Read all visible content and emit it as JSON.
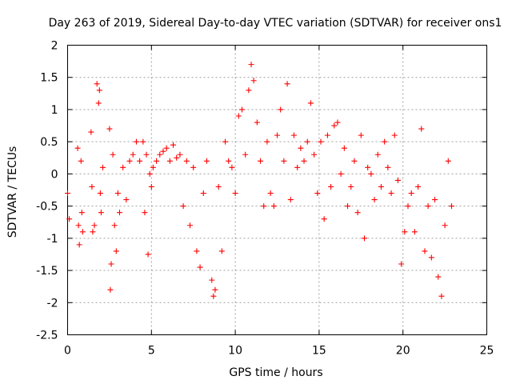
{
  "chart_data": {
    "type": "scatter",
    "title": "Day 263 of 2019, Sidereal Day-to-day VTEC variation (SDTVAR) for receiver ons1",
    "xlabel": "GPS time / hours",
    "ylabel": "SDTVAR / TECUs",
    "xlim": [
      0,
      25
    ],
    "ylim": [
      -2.5,
      2
    ],
    "x_ticks": [
      0,
      5,
      10,
      15,
      20,
      25
    ],
    "x_tick_labels": [
      "0",
      "5",
      "10",
      "15",
      "20",
      "25"
    ],
    "y_ticks": [
      -2.5,
      -2,
      -1.5,
      -1,
      -0.5,
      0,
      0.5,
      1,
      1.5,
      2
    ],
    "y_tick_labels": [
      "-2.5",
      "-2",
      "-1.5",
      "-1",
      "-0.5",
      "0",
      "0.5",
      "1",
      "1.5",
      "2"
    ],
    "grid": true,
    "marker": "+",
    "color": "#ff0000",
    "series": [
      {
        "name": "SDTVAR",
        "x": [
          0.0,
          0.1,
          0.6,
          0.65,
          0.7,
          0.8,
          0.85,
          0.9,
          1.4,
          1.45,
          1.5,
          1.6,
          1.75,
          1.85,
          1.9,
          1.95,
          2.0,
          2.1,
          2.5,
          2.55,
          2.6,
          2.7,
          2.8,
          2.9,
          3.0,
          3.1,
          3.3,
          3.5,
          3.7,
          3.9,
          4.1,
          4.3,
          4.5,
          4.6,
          4.7,
          4.8,
          4.9,
          5.0,
          5.1,
          5.3,
          5.5,
          5.7,
          5.9,
          6.1,
          6.3,
          6.5,
          6.7,
          6.9,
          7.1,
          7.3,
          7.5,
          7.7,
          7.9,
          8.1,
          8.3,
          8.6,
          8.7,
          8.8,
          9.0,
          9.2,
          9.4,
          9.6,
          9.8,
          10.0,
          10.2,
          10.4,
          10.6,
          10.8,
          10.95,
          11.1,
          11.3,
          11.5,
          11.7,
          11.9,
          12.1,
          12.3,
          12.5,
          12.7,
          12.9,
          13.1,
          13.3,
          13.5,
          13.7,
          13.9,
          14.1,
          14.3,
          14.5,
          14.7,
          14.9,
          15.1,
          15.3,
          15.5,
          15.7,
          15.9,
          16.1,
          16.3,
          16.5,
          16.7,
          16.9,
          17.1,
          17.3,
          17.5,
          17.7,
          17.9,
          18.1,
          18.3,
          18.5,
          18.7,
          18.9,
          19.1,
          19.3,
          19.5,
          19.7,
          19.9,
          20.1,
          20.3,
          20.5,
          20.7,
          20.9,
          21.1,
          21.3,
          21.5,
          21.7,
          21.9,
          22.1,
          22.3,
          22.5,
          22.7,
          22.9
        ],
        "y": [
          -0.3,
          -0.7,
          0.4,
          -0.8,
          -1.1,
          0.2,
          -0.6,
          -0.9,
          0.65,
          -0.2,
          -0.9,
          -0.8,
          1.4,
          1.1,
          1.3,
          -0.3,
          -0.6,
          0.1,
          0.7,
          -1.8,
          -1.4,
          0.3,
          -0.8,
          -1.2,
          -0.3,
          -0.6,
          0.1,
          -0.4,
          0.2,
          0.3,
          0.5,
          0.2,
          0.5,
          -0.6,
          0.3,
          -1.25,
          0.0,
          -0.2,
          0.1,
          0.2,
          0.3,
          0.35,
          0.4,
          0.2,
          0.45,
          0.25,
          0.3,
          -0.5,
          0.2,
          -0.8,
          0.1,
          -1.2,
          -1.45,
          -0.3,
          0.2,
          -1.65,
          -1.9,
          -1.8,
          -0.2,
          -1.2,
          0.5,
          0.2,
          0.1,
          -0.3,
          0.9,
          1.0,
          0.3,
          1.3,
          1.7,
          1.45,
          0.8,
          0.2,
          -0.5,
          0.5,
          -0.3,
          -0.5,
          0.6,
          1.0,
          0.2,
          1.4,
          -0.4,
          0.6,
          0.1,
          0.4,
          0.2,
          0.5,
          1.1,
          0.3,
          -0.3,
          0.5,
          -0.7,
          0.6,
          -0.2,
          0.75,
          0.8,
          0.0,
          0.4,
          -0.5,
          -0.2,
          0.2,
          -0.6,
          0.6,
          -1.0,
          0.1,
          0.0,
          -0.4,
          0.3,
          -0.2,
          0.5,
          0.1,
          -0.3,
          0.6,
          -0.1,
          -1.4,
          -0.9,
          -0.5,
          -0.3,
          -0.9,
          -0.2,
          0.7,
          -1.2,
          -0.5,
          -1.3,
          -0.4,
          -1.6,
          -1.9,
          -0.8,
          0.2,
          -0.5
        ]
      }
    ]
  }
}
